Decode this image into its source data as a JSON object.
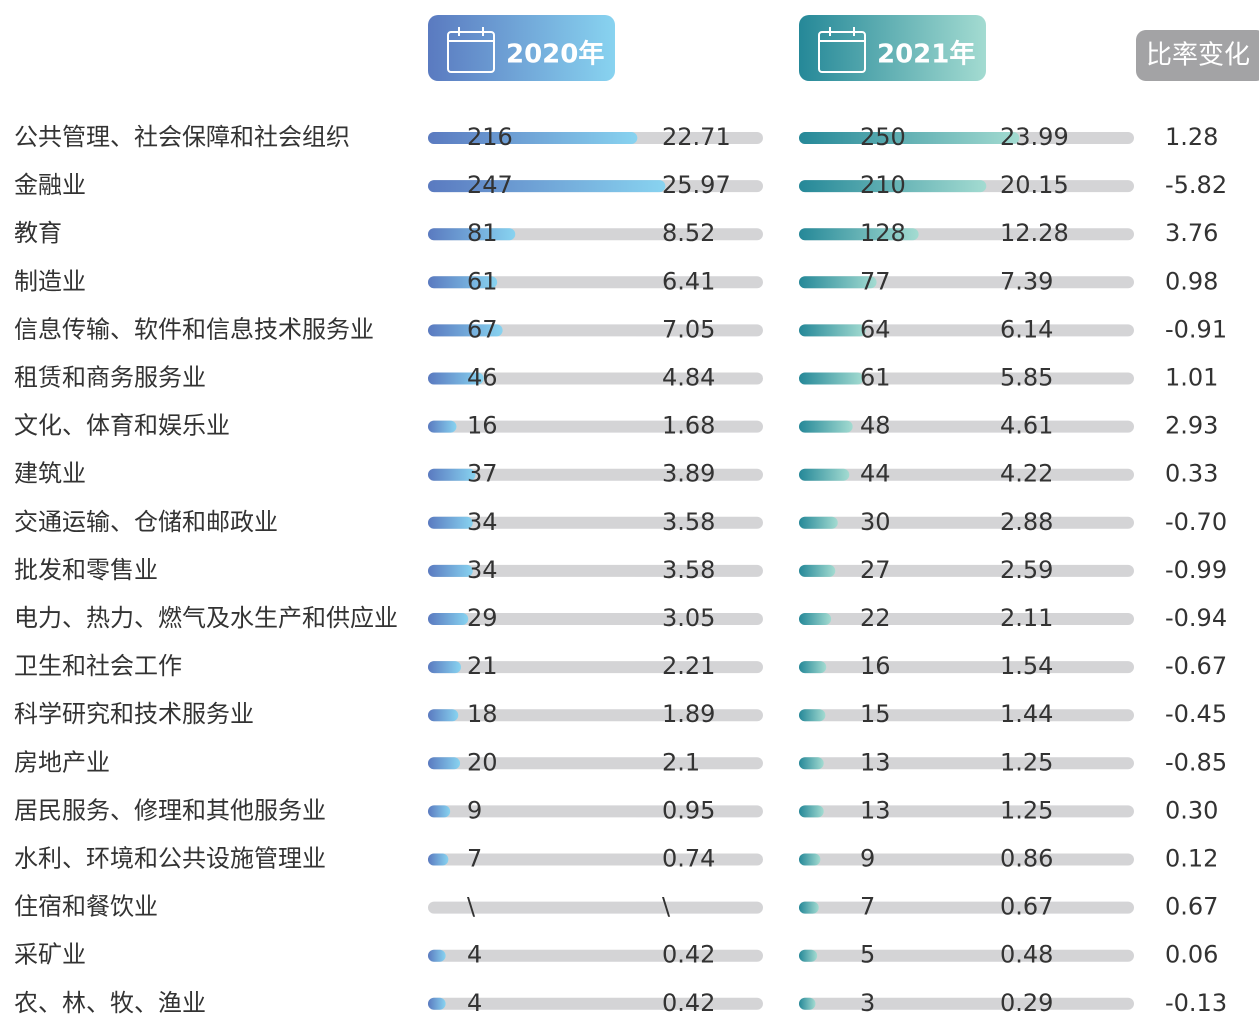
{
  "header": {
    "y2020": "2020年",
    "y2021": "2021年",
    "change": "比率变化"
  },
  "rows": [
    {
      "label": "公共管理、社会保障和社会组织",
      "count2020": "216",
      "pct2020": "22.71",
      "count2021": "250",
      "pct2021": "23.99",
      "change": "1.28"
    },
    {
      "label": "金融业",
      "count2020": "247",
      "pct2020": "25.97",
      "count2021": "210",
      "pct2021": "20.15",
      "change": "-5.82"
    },
    {
      "label": "教育",
      "count2020": "81",
      "pct2020": "8.52",
      "count2021": "128",
      "pct2021": "12.28",
      "change": "3.76"
    },
    {
      "label": "制造业",
      "count2020": "61",
      "pct2020": "6.41",
      "count2021": "77",
      "pct2021": "7.39",
      "change": "0.98"
    },
    {
      "label": "信息传输、软件和信息技术服务业",
      "count2020": "67",
      "pct2020": "7.05",
      "count2021": "64",
      "pct2021": "6.14",
      "change": "-0.91"
    },
    {
      "label": "租赁和商务服务业",
      "count2020": "46",
      "pct2020": "4.84",
      "count2021": "61",
      "pct2021": "5.85",
      "change": "1.01"
    },
    {
      "label": "文化、体育和娱乐业",
      "count2020": "16",
      "pct2020": "1.68",
      "count2021": "48",
      "pct2021": "4.61",
      "change": "2.93"
    },
    {
      "label": "建筑业",
      "count2020": "37",
      "pct2020": "3.89",
      "count2021": "44",
      "pct2021": "4.22",
      "change": "0.33"
    },
    {
      "label": "交通运输、仓储和邮政业",
      "count2020": "34",
      "pct2020": "3.58",
      "count2021": "30",
      "pct2021": "2.88",
      "change": "-0.70"
    },
    {
      "label": "批发和零售业",
      "count2020": "34",
      "pct2020": "3.58",
      "count2021": "27",
      "pct2021": "2.59",
      "change": "-0.99"
    },
    {
      "label": "电力、热力、燃气及水生产和供应业",
      "count2020": "29",
      "pct2020": "3.05",
      "count2021": "22",
      "pct2021": "2.11",
      "change": "-0.94"
    },
    {
      "label": "卫生和社会工作",
      "count2020": "21",
      "pct2020": "2.21",
      "count2021": "16",
      "pct2021": "1.54",
      "change": "-0.67"
    },
    {
      "label": "科学研究和技术服务业",
      "count2020": "18",
      "pct2020": "1.89",
      "count2021": "15",
      "pct2021": "1.44",
      "change": "-0.45"
    },
    {
      "label": "房地产业",
      "count2020": "20",
      "pct2020": "2.1",
      "count2021": "13",
      "pct2021": "1.25",
      "change": "-0.85"
    },
    {
      "label": "居民服务、修理和其他服务业",
      "count2020": "9",
      "pct2020": "0.95",
      "count2021": "13",
      "pct2021": "1.25",
      "change": "0.30"
    },
    {
      "label": "水利、环境和公共设施管理业",
      "count2020": "7",
      "pct2020": "0.74",
      "count2021": "9",
      "pct2021": "0.86",
      "change": "0.12"
    },
    {
      "label": "住宿和餐饮业",
      "count2020": "\\",
      "pct2020": "\\",
      "count2021": "7",
      "pct2021": "0.67",
      "change": "0.67"
    },
    {
      "label": "采矿业",
      "count2020": "4",
      "pct2020": "0.42",
      "count2021": "5",
      "pct2021": "0.48",
      "change": "0.06"
    },
    {
      "label": "农、林、牧、渔业",
      "count2020": "4",
      "pct2020": "0.42",
      "count2021": "3",
      "pct2021": "0.29",
      "change": "-0.13"
    }
  ]
}
